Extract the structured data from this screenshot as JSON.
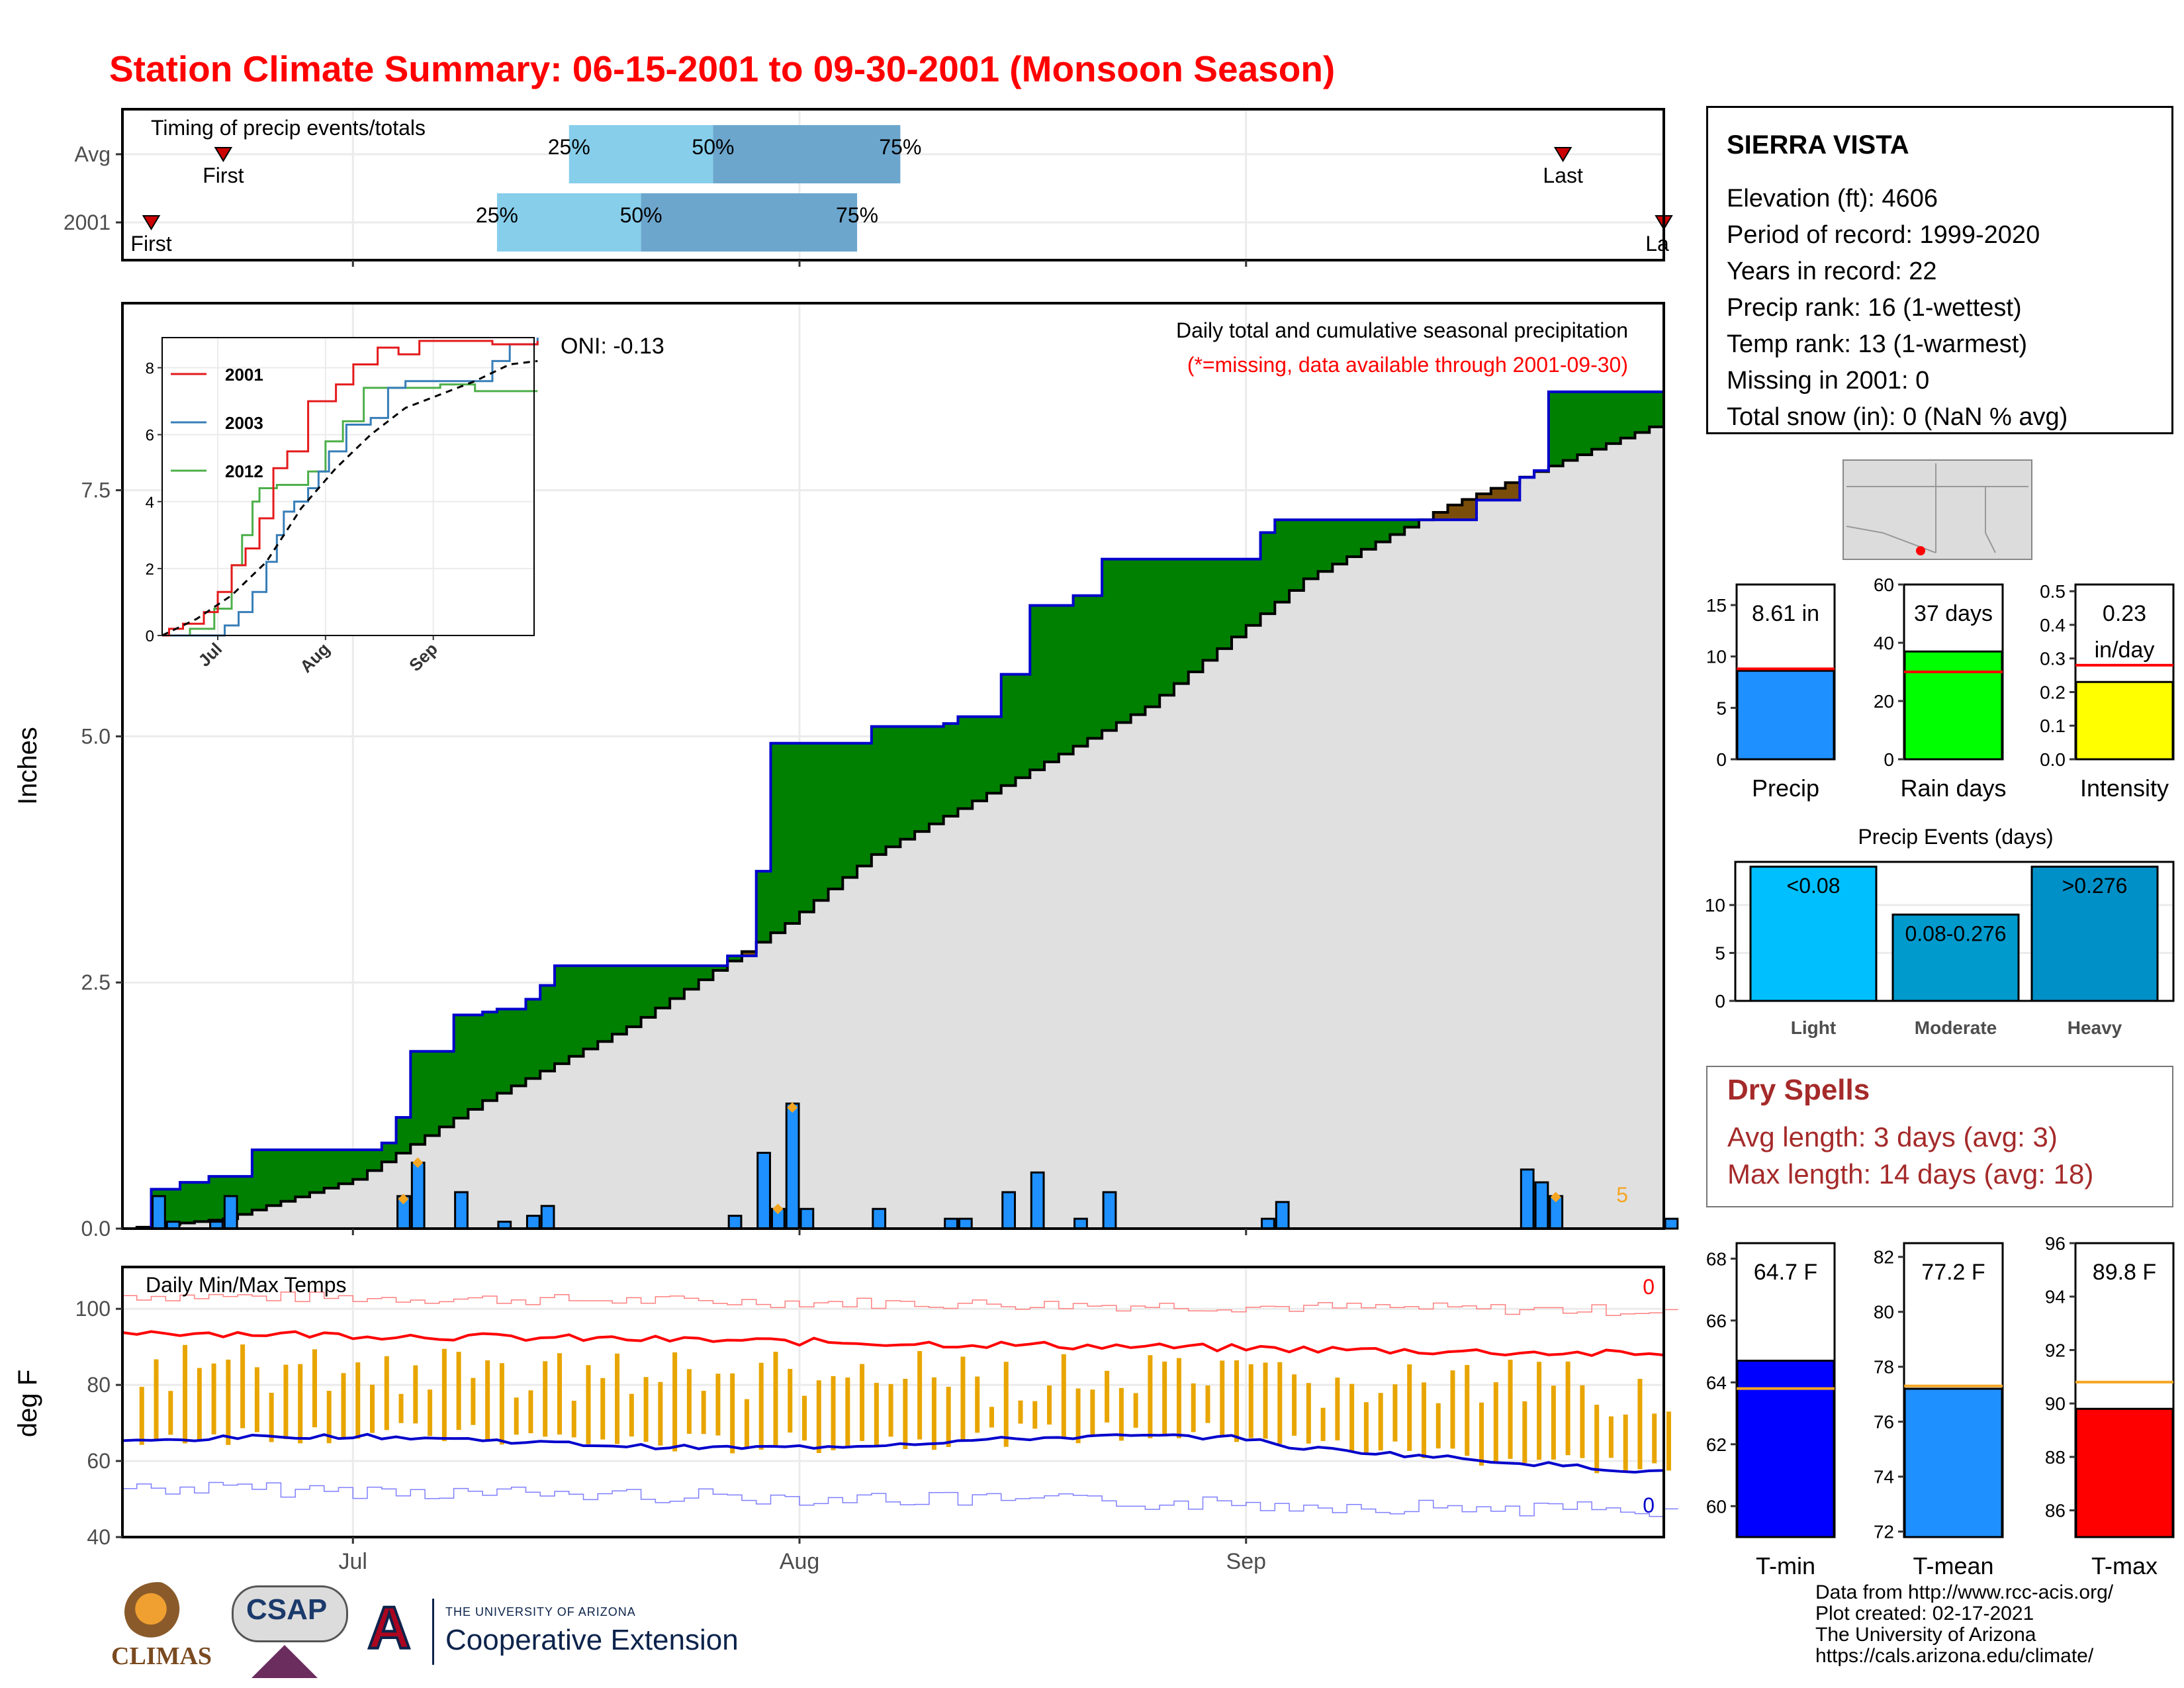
{
  "title": "Station Climate Summary: 06-15-2001 to 09-30-2001 (Monsoon Season)",
  "colors": {
    "title": "#ff0000",
    "obs": "#0000cc",
    "avg": "#ff0000",
    "greenFill": "#008000",
    "brownFill": "#7a4e0a",
    "normalFill": "#e0e0e0",
    "dailyBar": "#1e90ff",
    "light": "#00bfff",
    "moderate": "#009acd",
    "heavy": "#0090c8",
    "tmin": "#0000ff",
    "tmean": "#1e90ff",
    "tmax": "#ff0000",
    "tempBar": "#e8a500",
    "pct25": "#87ceeb",
    "pct50": "#6ca6cd",
    "dryspell": "#a52a2a"
  },
  "timing": {
    "title": "Timing of precip events/totals",
    "rows": [
      {
        "label": "Avg",
        "first_label": "First",
        "last_label": "Last",
        "p25": "25%",
        "p50": "50%",
        "p75": "75%",
        "first": "2001-06-22",
        "p25_date": "2001-07-16",
        "p50_date": "2001-07-26",
        "p75_date": "2001-08-08",
        "last": "2001-09-23"
      },
      {
        "label": "2001",
        "first_label": "First",
        "last_label": "La",
        "p25": "25%",
        "p50": "50%",
        "p75": "75%",
        "first": "2001-06-17",
        "p25_date": "2001-07-11",
        "p50_date": "2001-07-21",
        "p75_date": "2001-08-05",
        "last": "2001-09-30"
      }
    ]
  },
  "station": {
    "name": "SIERRA VISTA",
    "lines": [
      "Elevation (ft): 4606",
      "Period of record: 1999-2020",
      "Years in record: 22",
      "Precip rank: 16 (1-wettest)",
      "Temp rank: 13 (1-warmest)",
      "Missing in 2001: 0",
      "Total snow (in): 0 (NaN % avg)"
    ]
  },
  "main": {
    "ylabel": "Inches",
    "title1": "Daily total and cumulative seasonal precipitation",
    "title2": "(*=missing, data available through 2001-09-30)",
    "oni": "ONI: -0.13",
    "count_label": "5",
    "yticks": [
      "0.0",
      "2.5",
      "5.0",
      "7.5"
    ]
  },
  "inset": {
    "legend": [
      "2001",
      "2003",
      "2012"
    ],
    "yticks": [
      "0",
      "2",
      "4",
      "6",
      "8"
    ],
    "xticks": [
      "Jul",
      "Aug",
      "Sep"
    ]
  },
  "bars_precip": {
    "label": "Precip",
    "value_label": "8.61 in",
    "yticks": [
      "0",
      "5",
      "10",
      "15"
    ]
  },
  "bars_raindays": {
    "label": "Rain days",
    "value_label": "37 days",
    "yticks": [
      "0",
      "20",
      "40",
      "60"
    ]
  },
  "bars_intensity": {
    "label": "Intensity",
    "value_label1": "0.23",
    "value_label2": "in/day",
    "yticks": [
      "0.0",
      "0.1",
      "0.2",
      "0.3",
      "0.4",
      "0.5"
    ]
  },
  "events": {
    "title": "Precip Events (days)",
    "categories": [
      "Light",
      "Moderate",
      "Heavy"
    ],
    "labels": [
      "<0.08",
      "0.08-0.276",
      ">0.276"
    ],
    "yticks": [
      "0",
      "5",
      "10"
    ]
  },
  "dry": {
    "title": "Dry Spells",
    "line1": "Avg length: 3 days (avg: 3)",
    "line2": "Max length: 14 days (avg: 18)"
  },
  "temps": {
    "title": "Daily Min/Max Temps",
    "ylabel": "deg F",
    "yticks": [
      "40",
      "60",
      "80",
      "100"
    ],
    "count_max": "0",
    "count_min": "0",
    "xticks": [
      "Jul",
      "Aug",
      "Sep"
    ]
  },
  "tbars": {
    "tmin": {
      "label": "T-min",
      "value_label": "64.7 F",
      "yticks": [
        "60",
        "62",
        "64",
        "66",
        "68"
      ]
    },
    "tmean": {
      "label": "T-mean",
      "value_label": "77.2 F",
      "yticks": [
        "72",
        "74",
        "76",
        "78",
        "80",
        "82"
      ]
    },
    "tmax": {
      "label": "T-max",
      "value_label": "89.8 F",
      "yticks": [
        "86",
        "88",
        "90",
        "92",
        "94",
        "96"
      ]
    }
  },
  "footer": {
    "credits": [
      "Data from http://www.rcc-acis.org/",
      "Plot created: 02-17-2021",
      "The University of Arizona",
      "https://cals.arizona.edu/climate/"
    ],
    "logo_climas": "CLIMAS",
    "logo_csap": "CSAP",
    "logo_ua_small": "THE UNIVERSITY OF ARIZONA",
    "logo_ua_big": "Cooperative Extension",
    "logo_a": "A"
  },
  "chart_data": [
    {
      "type": "line",
      "title": "Daily total and cumulative seasonal precipitation",
      "ylabel": "Inches",
      "ylim": [
        0,
        9.4
      ],
      "x_range": [
        "2001-06-15",
        "2001-09-30"
      ],
      "series": [
        {
          "name": "2001",
          "step_points": [
            [
              "2001-06-15",
              0
            ],
            [
              "2001-06-17",
              0.4
            ],
            [
              "2001-06-19",
              0.47
            ],
            [
              "2001-06-21",
              0.53
            ],
            [
              "2001-06-24",
              0.8
            ],
            [
              "2001-07-03",
              0.87
            ],
            [
              "2001-07-04",
              1.13
            ],
            [
              "2001-07-05",
              1.8
            ],
            [
              "2001-07-08",
              2.17
            ],
            [
              "2001-07-10",
              2.2
            ],
            [
              "2001-07-11",
              2.23
            ],
            [
              "2001-07-13",
              2.33
            ],
            [
              "2001-07-14",
              2.47
            ],
            [
              "2001-07-15",
              2.67
            ],
            [
              "2001-07-27",
              2.77
            ],
            [
              "2001-07-29",
              3.63
            ],
            [
              "2001-07-30",
              4.93
            ],
            [
              "2001-08-06",
              5.1
            ],
            [
              "2001-08-11",
              5.13
            ],
            [
              "2001-08-12",
              5.2
            ],
            [
              "2001-08-15",
              5.63
            ],
            [
              "2001-08-17",
              6.33
            ],
            [
              "2001-08-20",
              6.43
            ],
            [
              "2001-08-22",
              6.8
            ],
            [
              "2001-09-02",
              7.07
            ],
            [
              "2001-09-03",
              7.2
            ],
            [
              "2001-09-17",
              7.4
            ],
            [
              "2001-09-20",
              7.63
            ],
            [
              "2001-09-21",
              7.7
            ],
            [
              "2001-09-22",
              8.5
            ],
            [
              "2001-09-30",
              8.61
            ]
          ]
        },
        {
          "name": "Average (cumulative)",
          "points": [
            [
              "2001-06-15",
              0
            ],
            [
              "2001-06-22",
              0.1
            ],
            [
              "2001-07-01",
              0.5
            ],
            [
              "2001-07-10",
              1.3
            ],
            [
              "2001-07-20",
              2.05
            ],
            [
              "2001-07-31",
              3.1
            ],
            [
              "2001-08-06",
              3.8
            ],
            [
              "2001-08-15",
              4.5
            ],
            [
              "2001-08-25",
              5.3
            ],
            [
              "2001-09-05",
              6.6
            ],
            [
              "2001-09-15",
              7.35
            ],
            [
              "2001-09-30",
              8.2
            ]
          ]
        }
      ],
      "daily_bars": [
        [
          "2001-06-17",
          0.33
        ],
        [
          "2001-06-18",
          0.07
        ],
        [
          "2001-06-21",
          0.07
        ],
        [
          "2001-06-22",
          0.33
        ],
        [
          "2001-07-04",
          0.33
        ],
        [
          "2001-07-05",
          0.67
        ],
        [
          "2001-07-08",
          0.37
        ],
        [
          "2001-07-11",
          0.07
        ],
        [
          "2001-07-13",
          0.13
        ],
        [
          "2001-07-14",
          0.23
        ],
        [
          "2001-07-27",
          0.13
        ],
        [
          "2001-07-29",
          0.77
        ],
        [
          "2001-07-30",
          0.2
        ],
        [
          "2001-07-31",
          1.27
        ],
        [
          "2001-08-01",
          0.2
        ],
        [
          "2001-08-06",
          0.2
        ],
        [
          "2001-08-11",
          0.1
        ],
        [
          "2001-08-12",
          0.1
        ],
        [
          "2001-08-15",
          0.37
        ],
        [
          "2001-08-17",
          0.57
        ],
        [
          "2001-08-20",
          0.1
        ],
        [
          "2001-08-22",
          0.37
        ],
        [
          "2001-09-02",
          0.1
        ],
        [
          "2001-09-03",
          0.27
        ],
        [
          "2001-09-20",
          0.6
        ],
        [
          "2001-09-21",
          0.47
        ],
        [
          "2001-09-22",
          0.33
        ],
        [
          "2001-09-30",
          0.1
        ]
      ]
    },
    {
      "type": "line",
      "title": "Daily Min/Max Temps",
      "ylabel": "deg F",
      "ylim": [
        40,
        110
      ],
      "series": [
        {
          "name": "Avg max",
          "values_summary": "~93 early declining to ~88"
        },
        {
          "name": "Avg min",
          "values_summary": "~63-66 declining to ~57"
        }
      ]
    },
    {
      "type": "bar",
      "categories": [
        "Precip"
      ],
      "values": [
        8.61
      ],
      "ylim": [
        0,
        17
      ],
      "average": 8.8
    },
    {
      "type": "bar",
      "categories": [
        "Rain days"
      ],
      "values": [
        37
      ],
      "ylim": [
        0,
        60
      ],
      "average": 30
    },
    {
      "type": "bar",
      "categories": [
        "Intensity"
      ],
      "values": [
        0.23
      ],
      "ylim": [
        0,
        0.52
      ],
      "average": 0.28
    },
    {
      "type": "bar",
      "title": "Precip Events (days)",
      "categories": [
        "Light",
        "Moderate",
        "Heavy"
      ],
      "values": [
        14,
        9,
        14
      ],
      "ylim": [
        0,
        14.5
      ]
    },
    {
      "type": "bar",
      "categories": [
        "T-min"
      ],
      "values": [
        64.7
      ],
      "ylim": [
        59,
        68.5
      ],
      "average": 63.8
    },
    {
      "type": "bar",
      "categories": [
        "T-mean"
      ],
      "values": [
        77.2
      ],
      "ylim": [
        71.8,
        82.5
      ],
      "average": 77.3
    },
    {
      "type": "bar",
      "categories": [
        "T-max"
      ],
      "values": [
        89.8
      ],
      "ylim": [
        85,
        96
      ],
      "average": 90.8
    }
  ]
}
